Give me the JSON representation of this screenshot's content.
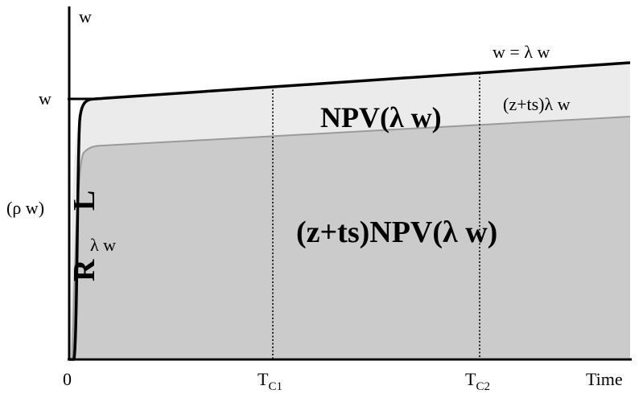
{
  "labels": {
    "y_axis": "w",
    "y_tick": "w",
    "x_origin": "0",
    "x_axis": "Time",
    "tc1_main": "T",
    "tc1_sub": "C1",
    "tc2_main": "T",
    "tc2_sub": "C2",
    "top_curve": "w = λ w",
    "middle_curve": "(z+ts)λ w",
    "rho_label": "(ρ w)",
    "lambda_w": "λ w",
    "L": "L",
    "R": "R",
    "npv_upper": "NPV(λ w)",
    "npv_lower": "(z+ts)NPV(λ w)"
  },
  "colors": {
    "axis": "#000000",
    "upper_band": "#ebebeb",
    "lower_region": "#cbcbcb",
    "lower_edge": "#9a9a9a",
    "top_line": "#000000",
    "dotted": "#000000"
  }
}
